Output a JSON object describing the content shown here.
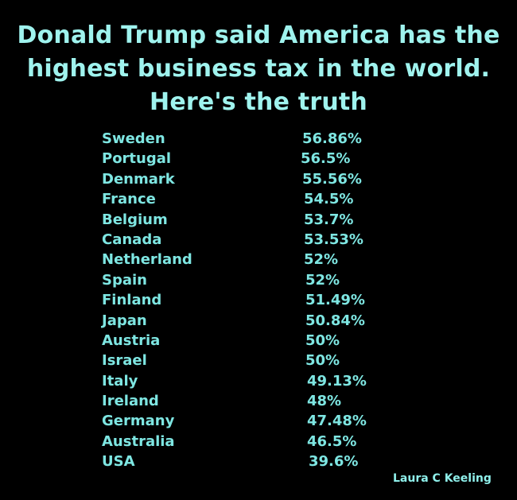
{
  "title": {
    "line1": "Donald  Trump said America has the",
    "line2": "highest business tax in the world.",
    "line3": "Here's the truth"
  },
  "rows": [
    {
      "country": "Sweden",
      "rate": "56.86%"
    },
    {
      "country": "Portugal",
      "rate": "56.5%"
    },
    {
      "country": "Denmark",
      "rate": "55.56%"
    },
    {
      "country": "France",
      "rate": "54.5%"
    },
    {
      "country": "Belgium",
      "rate": "53.7%"
    },
    {
      "country": "Canada",
      "rate": "53.53%"
    },
    {
      "country": "Netherland",
      "rate": "52%"
    },
    {
      "country": "Spain",
      "rate": "52%"
    },
    {
      "country": "Finland",
      "rate": "51.49%"
    },
    {
      "country": "Japan",
      "rate": "50.84%"
    },
    {
      "country": "Austria",
      "rate": "50%"
    },
    {
      "country": "Israel",
      "rate": "50%"
    },
    {
      "country": "Italy",
      "rate": "49.13%"
    },
    {
      "country": "Ireland",
      "rate": "48%"
    },
    {
      "country": "Germany",
      "rate": "47.48%"
    },
    {
      "country": "Australia",
      "rate": "46.5%"
    },
    {
      "country": "USA",
      "rate": "39.6%"
    }
  ],
  "credit": "Laura C Keeling",
  "colors": {
    "background": "#000000",
    "title": "#9ff3ee",
    "text": "#7ee6e2"
  }
}
